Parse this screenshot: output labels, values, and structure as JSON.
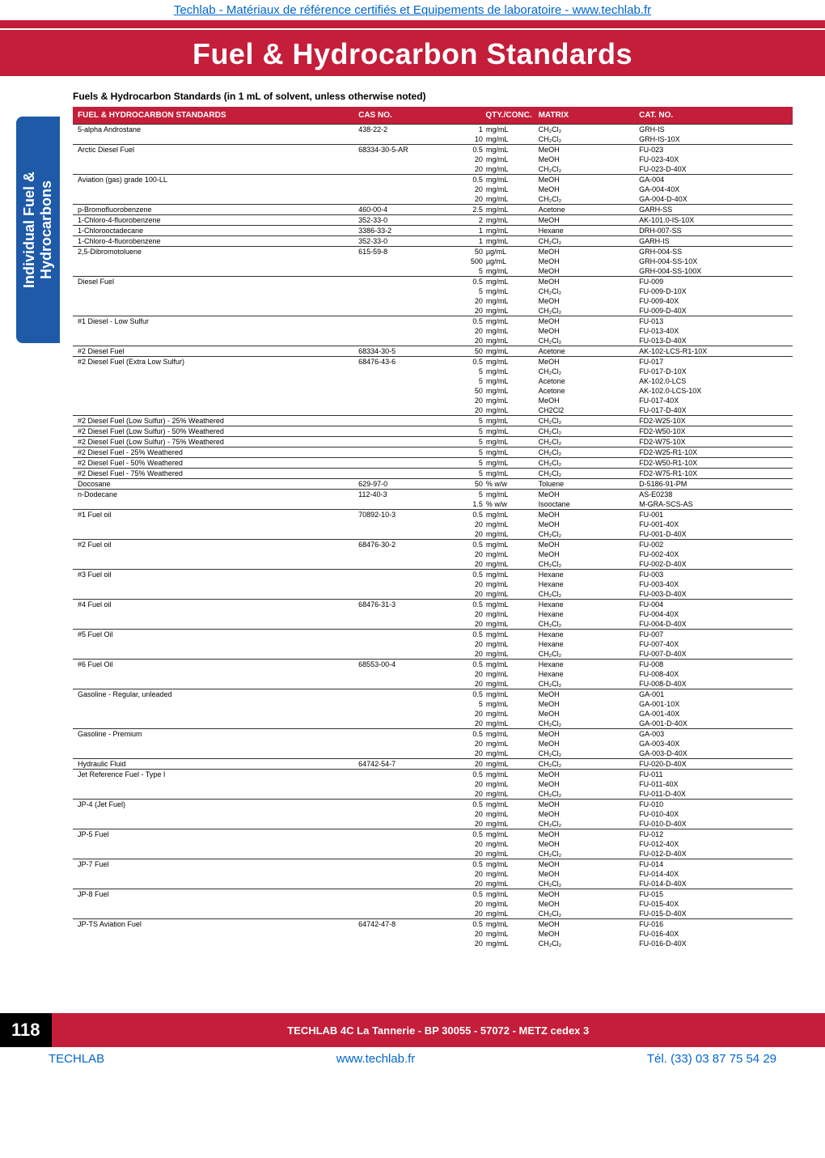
{
  "top_link": "Techlab - Matériaux de référence certifiés et Equipements de laboratoire - www.techlab.fr",
  "title": "Fuel & Hydrocarbon Standards",
  "subhead": "Fuels & Hydrocarbon Standards (in 1 mL of solvent, unless otherwise noted)",
  "side_tab": "Individual Fuel & Hydrocarbons",
  "headers": {
    "name": "FUEL & HYDROCARBON STANDARDS",
    "cas": "CAS NO.",
    "qty": "QTY./CONC.",
    "matrix": "MATRIX",
    "cat": "CAT. NO."
  },
  "rows": [
    {
      "sep": true,
      "name": "5-alpha Androstane",
      "cas": "438-22-2",
      "qty": "1",
      "unit": "mg/mL",
      "matrix": "CH₂Cl₂",
      "cat": "GRH-IS"
    },
    {
      "name": "",
      "cas": "",
      "qty": "10",
      "unit": "mg/mL",
      "matrix": "CH₂Cl₂",
      "cat": "GRH-IS-10X"
    },
    {
      "sep": true,
      "name": "Arctic Diesel Fuel",
      "cas": "68334-30-5-AR",
      "qty": "0.5",
      "unit": "mg/mL",
      "matrix": "MeOH",
      "cat": "FU-023"
    },
    {
      "name": "",
      "cas": "",
      "qty": "20",
      "unit": "mg/mL",
      "matrix": "MeOH",
      "cat": "FU-023-40X"
    },
    {
      "name": "",
      "cas": "",
      "qty": "20",
      "unit": "mg/mL",
      "matrix": "CH₂Cl₂",
      "cat": "FU-023-D-40X"
    },
    {
      "sep": true,
      "name": "Aviation (gas) grade 100-LL",
      "cas": "",
      "qty": "0.5",
      "unit": "mg/mL",
      "matrix": "MeOH",
      "cat": "GA-004"
    },
    {
      "name": "",
      "cas": "",
      "qty": "20",
      "unit": "mg/mL",
      "matrix": "MeOH",
      "cat": "GA-004-40X"
    },
    {
      "name": "",
      "cas": "",
      "qty": "20",
      "unit": "mg/mL",
      "matrix": "CH₂Cl₂",
      "cat": "GA-004-D-40X"
    },
    {
      "sep": true,
      "name": "p-Bromofluorobenzene",
      "cas": "460-00-4",
      "qty": "2.5",
      "unit": "mg/mL",
      "matrix": "Acetone",
      "cat": "GARH-SS"
    },
    {
      "sep": true,
      "name": "1-Chloro-4-fluorobenzene",
      "cas": "352-33-0",
      "qty": "2",
      "unit": "mg/mL",
      "matrix": "MeOH",
      "cat": "AK-101.0-IS-10X"
    },
    {
      "sep": true,
      "name": "1-Chlorooctadecane",
      "cas": "3386-33-2",
      "qty": "1",
      "unit": "mg/mL",
      "matrix": "Hexane",
      "cat": "DRH-007-SS"
    },
    {
      "sep": true,
      "name": "1-Chloro-4-fluorobenzene",
      "cas": "352-33-0",
      "qty": "1",
      "unit": "mg/mL",
      "matrix": "CH₂Cl₂",
      "cat": "GARH-IS"
    },
    {
      "sep": true,
      "name": "2,5-Dibromotoluene",
      "cas": "615-59-8",
      "qty": "50",
      "unit": "µg/mL",
      "matrix": "MeOH",
      "cat": "GRH-004-SS"
    },
    {
      "name": "",
      "cas": "",
      "qty": "500",
      "unit": "µg/mL",
      "matrix": "MeOH",
      "cat": "GRH-004-SS-10X"
    },
    {
      "name": "",
      "cas": "",
      "qty": "5",
      "unit": "mg/mL",
      "matrix": "MeOH",
      "cat": "GRH-004-SS-100X"
    },
    {
      "sep": true,
      "name": "Diesel Fuel",
      "cas": "",
      "qty": "0.5",
      "unit": "mg/mL",
      "matrix": "MeOH",
      "cat": "FU-009"
    },
    {
      "name": "",
      "cas": "",
      "qty": "5",
      "unit": "mg/mL",
      "matrix": "CH₂Cl₂",
      "cat": "FU-009-D-10X"
    },
    {
      "name": "",
      "cas": "",
      "qty": "20",
      "unit": "mg/mL",
      "matrix": "MeOH",
      "cat": "FU-009-40X"
    },
    {
      "name": "",
      "cas": "",
      "qty": "20",
      "unit": "mg/mL",
      "matrix": "CH₂Cl₂",
      "cat": "FU-009-D-40X"
    },
    {
      "sep": true,
      "name": "#1 Diesel - Low Sulfur",
      "cas": "",
      "qty": "0.5",
      "unit": "mg/mL",
      "matrix": "MeOH",
      "cat": "FU-013"
    },
    {
      "name": "",
      "cas": "",
      "qty": "20",
      "unit": "mg/mL",
      "matrix": "MeOH",
      "cat": "FU-013-40X"
    },
    {
      "name": "",
      "cas": "",
      "qty": "20",
      "unit": "mg/mL",
      "matrix": "CH₂Cl₂",
      "cat": "FU-013-D-40X"
    },
    {
      "sep": true,
      "name": "#2 Diesel Fuel",
      "cas": "68334-30-5",
      "qty": "50",
      "unit": "mg/mL",
      "matrix": "Acetone",
      "cat": "AK-102-LCS-R1-10X"
    },
    {
      "sep": true,
      "name": "#2 Diesel Fuel (Extra Low Sulfur)",
      "cas": "68476-43-6",
      "qty": "0.5",
      "unit": "mg/mL",
      "matrix": "MeOH",
      "cat": "FU-017"
    },
    {
      "name": "",
      "cas": "",
      "qty": "5",
      "unit": "mg/mL",
      "matrix": "CH₂Cl₂",
      "cat": "FU-017-D-10X"
    },
    {
      "name": "",
      "cas": "",
      "qty": "5",
      "unit": "mg/mL",
      "matrix": "Acetone",
      "cat": "AK-102.0-LCS"
    },
    {
      "name": "",
      "cas": "",
      "qty": "50",
      "unit": "mg/mL",
      "matrix": "Acetone",
      "cat": "AK-102.0-LCS-10X"
    },
    {
      "name": "",
      "cas": "",
      "qty": "20",
      "unit": "mg/mL",
      "matrix": "MeOH",
      "cat": "FU-017-40X"
    },
    {
      "name": "",
      "cas": "",
      "qty": "20",
      "unit": "mg/mL",
      "matrix": "CH2Cl2",
      "cat": "FU-017-D-40X"
    },
    {
      "sep": true,
      "name": "#2 Diesel Fuel (Low Sulfur) - 25% Weathered",
      "cas": "",
      "qty": "5",
      "unit": "mg/mL",
      "matrix": "CH₂Cl₂",
      "cat": "FD2-W25-10X"
    },
    {
      "sep": true,
      "name": "#2 Diesel Fuel (Low Sulfur) - 50% Weathered",
      "cas": "",
      "qty": "5",
      "unit": "mg/mL",
      "matrix": "CH₂Cl₂",
      "cat": "FD2-W50-10X"
    },
    {
      "sep": true,
      "name": "#2 Diesel Fuel (Low Sulfur) - 75% Weathered",
      "cas": "",
      "qty": "5",
      "unit": "mg/mL",
      "matrix": "CH₂Cl₂",
      "cat": "FD2-W75-10X"
    },
    {
      "sep": true,
      "name": "#2 Diesel Fuel - 25% Weathered",
      "cas": "",
      "qty": "5",
      "unit": "mg/mL",
      "matrix": "CH₂Cl₂",
      "cat": "FD2-W25-R1-10X"
    },
    {
      "sep": true,
      "name": "#2 Diesel Fuel - 50% Weathered",
      "cas": "",
      "qty": "5",
      "unit": "mg/mL",
      "matrix": "CH₂Cl₂",
      "cat": "FD2-W50-R1-10X"
    },
    {
      "sep": true,
      "name": "#2 Diesel Fuel - 75% Weathered",
      "cas": "",
      "qty": "5",
      "unit": "mg/mL",
      "matrix": "CH₂Cl₂",
      "cat": "FD2-W75-R1-10X"
    },
    {
      "sep": true,
      "name": "Docosane",
      "cas": "629-97-0",
      "qty": "50",
      "unit": "% w/w",
      "matrix": "Toluene",
      "cat": "D-5186-91-PM"
    },
    {
      "sep": true,
      "name": "n-Dodecane",
      "cas": "112-40-3",
      "qty": "5",
      "unit": "mg/mL",
      "matrix": "MeOH",
      "cat": "AS-E0238"
    },
    {
      "name": "",
      "cas": "",
      "qty": "1.5",
      "unit": "% w/w",
      "matrix": "Isooctane",
      "cat": "M-GRA-SCS-AS"
    },
    {
      "sep": true,
      "name": "#1 Fuel oil",
      "cas": "70892-10-3",
      "qty": "0.5",
      "unit": "mg/mL",
      "matrix": "MeOH",
      "cat": "FU-001"
    },
    {
      "name": "",
      "cas": "",
      "qty": "20",
      "unit": "mg/mL",
      "matrix": "MeOH",
      "cat": "FU-001-40X"
    },
    {
      "name": "",
      "cas": "",
      "qty": "20",
      "unit": "mg/mL",
      "matrix": "CH₂Cl₂",
      "cat": "FU-001-D-40X"
    },
    {
      "sep": true,
      "name": "#2 Fuel oil",
      "cas": "68476-30-2",
      "qty": "0.5",
      "unit": "mg/mL",
      "matrix": "MeOH",
      "cat": "FU-002"
    },
    {
      "name": "",
      "cas": "",
      "qty": "20",
      "unit": "mg/mL",
      "matrix": "MeOH",
      "cat": "FU-002-40X"
    },
    {
      "name": "",
      "cas": "",
      "qty": "20",
      "unit": "mg/mL",
      "matrix": "CH₂Cl₂",
      "cat": "FU-002-D-40X"
    },
    {
      "sep": true,
      "name": "#3 Fuel oil",
      "cas": "",
      "qty": "0.5",
      "unit": "mg/mL",
      "matrix": "Hexane",
      "cat": "FU-003"
    },
    {
      "name": "",
      "cas": "",
      "qty": "20",
      "unit": "mg/mL",
      "matrix": "Hexane",
      "cat": "FU-003-40X"
    },
    {
      "name": "",
      "cas": "",
      "qty": "20",
      "unit": "mg/mL",
      "matrix": "CH₂Cl₂",
      "cat": "FU-003-D-40X"
    },
    {
      "sep": true,
      "name": "#4 Fuel oil",
      "cas": "68476-31-3",
      "qty": "0.5",
      "unit": "mg/mL",
      "matrix": "Hexane",
      "cat": "FU-004"
    },
    {
      "name": "",
      "cas": "",
      "qty": "20",
      "unit": "mg/mL",
      "matrix": "Hexane",
      "cat": "FU-004-40X"
    },
    {
      "name": "",
      "cas": "",
      "qty": "20",
      "unit": "mg/mL",
      "matrix": "CH₂Cl₂",
      "cat": "FU-004-D-40X"
    },
    {
      "sep": true,
      "name": "#5 Fuel Oil",
      "cas": "",
      "qty": "0.5",
      "unit": "mg/mL",
      "matrix": "Hexane",
      "cat": "FU-007"
    },
    {
      "name": "",
      "cas": "",
      "qty": "20",
      "unit": "mg/mL",
      "matrix": "Hexane",
      "cat": "FU-007-40X"
    },
    {
      "name": "",
      "cas": "",
      "qty": "20",
      "unit": "mg/mL",
      "matrix": "CH₂Cl₂",
      "cat": "FU-007-D-40X"
    },
    {
      "sep": true,
      "name": "#6 Fuel Oil",
      "cas": "68553-00-4",
      "qty": "0.5",
      "unit": "mg/mL",
      "matrix": "Hexane",
      "cat": "FU-008"
    },
    {
      "name": "",
      "cas": "",
      "qty": "20",
      "unit": "mg/mL",
      "matrix": "Hexane",
      "cat": "FU-008-40X"
    },
    {
      "name": "",
      "cas": "",
      "qty": "20",
      "unit": "mg/mL",
      "matrix": "CH₂Cl₂",
      "cat": "FU-008-D-40X"
    },
    {
      "sep": true,
      "name": "Gasoline - Regular, unleaded",
      "cas": "",
      "qty": "0.5",
      "unit": "mg/mL",
      "matrix": "MeOH",
      "cat": "GA-001"
    },
    {
      "name": "",
      "cas": "",
      "qty": "5",
      "unit": "mg/mL",
      "matrix": "MeOH",
      "cat": "GA-001-10X"
    },
    {
      "name": "",
      "cas": "",
      "qty": "20",
      "unit": "mg/mL",
      "matrix": "MeOH",
      "cat": "GA-001-40X"
    },
    {
      "name": "",
      "cas": "",
      "qty": "20",
      "unit": "mg/mL",
      "matrix": "CH₂Cl₂",
      "cat": "GA-001-D-40X"
    },
    {
      "sep": true,
      "name": "Gasoline - Premium",
      "cas": "",
      "qty": "0.5",
      "unit": "mg/mL",
      "matrix": "MeOH",
      "cat": "GA-003"
    },
    {
      "name": "",
      "cas": "",
      "qty": "20",
      "unit": "mg/mL",
      "matrix": "MeOH",
      "cat": "GA-003-40X"
    },
    {
      "name": "",
      "cas": "",
      "qty": "20",
      "unit": "mg/mL",
      "matrix": "CH₂Cl₂",
      "cat": "GA-003-D-40X"
    },
    {
      "sep": true,
      "name": "Hydraulic Fluid",
      "cas": "64742-54-7",
      "qty": "20",
      "unit": "mg/mL",
      "matrix": "CH₂Cl₂",
      "cat": "FU-020-D-40X"
    },
    {
      "sep": true,
      "name": "Jet Reference Fuel - Type I",
      "cas": "",
      "qty": "0.5",
      "unit": "mg/mL",
      "matrix": "MeOH",
      "cat": "FU-011"
    },
    {
      "name": "",
      "cas": "",
      "qty": "20",
      "unit": "mg/mL",
      "matrix": "MeOH",
      "cat": "FU-011-40X"
    },
    {
      "name": "",
      "cas": "",
      "qty": "20",
      "unit": "mg/mL",
      "matrix": "CH₂Cl₂",
      "cat": "FU-011-D-40X"
    },
    {
      "sep": true,
      "name": "JP-4 (Jet Fuel)",
      "cas": "",
      "qty": "0.5",
      "unit": "mg/mL",
      "matrix": "MeOH",
      "cat": "FU-010"
    },
    {
      "name": "",
      "cas": "",
      "qty": "20",
      "unit": "mg/mL",
      "matrix": "MeOH",
      "cat": "FU-010-40X"
    },
    {
      "name": "",
      "cas": "",
      "qty": "20",
      "unit": "mg/mL",
      "matrix": "CH₂Cl₂",
      "cat": "FU-010-D-40X"
    },
    {
      "sep": true,
      "name": "JP-5 Fuel",
      "cas": "",
      "qty": "0.5",
      "unit": "mg/mL",
      "matrix": "MeOH",
      "cat": "FU-012"
    },
    {
      "name": "",
      "cas": "",
      "qty": "20",
      "unit": "mg/mL",
      "matrix": "MeOH",
      "cat": "FU-012-40X"
    },
    {
      "name": "",
      "cas": "",
      "qty": "20",
      "unit": "mg/mL",
      "matrix": "CH₂Cl₂",
      "cat": "FU-012-D-40X"
    },
    {
      "sep": true,
      "name": "JP-7 Fuel",
      "cas": "",
      "qty": "0.5",
      "unit": "mg/mL",
      "matrix": "MeOH",
      "cat": "FU-014"
    },
    {
      "name": "",
      "cas": "",
      "qty": "20",
      "unit": "mg/mL",
      "matrix": "MeOH",
      "cat": "FU-014-40X"
    },
    {
      "name": "",
      "cas": "",
      "qty": "20",
      "unit": "mg/mL",
      "matrix": "CH₂Cl₂",
      "cat": "FU-014-D-40X"
    },
    {
      "sep": true,
      "name": "JP-8 Fuel",
      "cas": "",
      "qty": "0.5",
      "unit": "mg/mL",
      "matrix": "MeOH",
      "cat": "FU-015"
    },
    {
      "name": "",
      "cas": "",
      "qty": "20",
      "unit": "mg/mL",
      "matrix": "MeOH",
      "cat": "FU-015-40X"
    },
    {
      "name": "",
      "cas": "",
      "qty": "20",
      "unit": "mg/mL",
      "matrix": "CH₂Cl₂",
      "cat": "FU-015-D-40X"
    },
    {
      "sep": true,
      "name": "JP-TS Aviation Fuel",
      "cas": "64742-47-8",
      "qty": "0.5",
      "unit": "mg/mL",
      "matrix": "MeOH",
      "cat": "FU-016"
    },
    {
      "name": "",
      "cas": "",
      "qty": "20",
      "unit": "mg/mL",
      "matrix": "MeOH",
      "cat": "FU-016-40X"
    },
    {
      "name": "",
      "cas": "",
      "qty": "20",
      "unit": "mg/mL",
      "matrix": "CH₂Cl₂",
      "cat": "FU-016-D-40X"
    }
  ],
  "page_num": "118",
  "footer_text": "TECHLAB  4C La Tannerie - BP 30055 - 57072 - METZ cedex 3",
  "bottom": {
    "left": "TECHLAB",
    "mid": "www.techlab.fr",
    "right": "Tél.  (33) 03 87 75 54 29"
  }
}
